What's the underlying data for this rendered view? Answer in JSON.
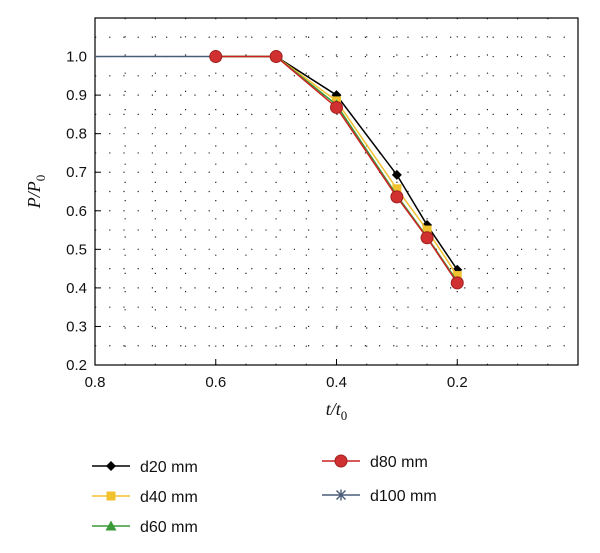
{
  "chart_data": {
    "type": "line",
    "xlabel": "t/t0",
    "ylabel": "P/P0",
    "x_ticks": [
      "0.8",
      "0.6",
      "0.4",
      "0.2"
    ],
    "y_ticks": [
      "0.2",
      "0.3",
      "0.4",
      "0.5",
      "0.6",
      "0.7",
      "0.8",
      "0.9",
      "1.0"
    ],
    "xlim": [
      0.8,
      0.0
    ],
    "ylim": [
      0.2,
      1.1
    ],
    "x_reversed": true,
    "grid": "dotted",
    "legend_position": "bottom",
    "series": [
      {
        "name": "d20 mm",
        "color": "#000000",
        "marker": "diamond",
        "x": [
          0.6,
          0.5,
          0.4,
          0.3,
          0.25,
          0.2
        ],
        "y": [
          1.0,
          1.0,
          0.9,
          0.693,
          0.563,
          0.447
        ]
      },
      {
        "name": "d40 mm",
        "color": "#f2c12e",
        "marker": "square",
        "x": [
          0.6,
          0.5,
          0.4,
          0.3,
          0.25,
          0.2
        ],
        "y": [
          1.0,
          1.0,
          0.885,
          0.657,
          0.55,
          0.432
        ]
      },
      {
        "name": "d60 mm",
        "color": "#3a9a3a",
        "marker": "triangle",
        "x": [
          0.6,
          0.5,
          0.4,
          0.3,
          0.25,
          0.2
        ],
        "y": [
          1.0,
          1.0,
          0.875,
          0.64,
          0.532,
          0.417
        ]
      },
      {
        "name": "d80 mm",
        "color": "#cc2222",
        "marker": "circle",
        "x": [
          0.6,
          0.5,
          0.4,
          0.3,
          0.25,
          0.2
        ],
        "y": [
          1.0,
          1.0,
          0.868,
          0.636,
          0.53,
          0.413
        ]
      },
      {
        "name": "d100 mm",
        "color": "#4a5d78",
        "marker": "star",
        "x": [
          0.8,
          0.6,
          0.5
        ],
        "y": [
          1.0,
          1.0,
          1.0
        ]
      }
    ]
  }
}
